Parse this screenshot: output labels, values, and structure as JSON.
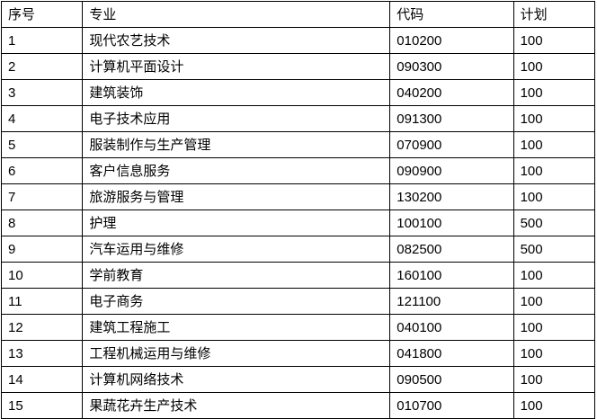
{
  "table": {
    "columns": [
      "序号",
      "专业",
      "代码",
      "计划"
    ],
    "rows": [
      [
        "1",
        "现代农艺技术",
        "010200",
        "100"
      ],
      [
        "2",
        "计算机平面设计",
        "090300",
        "100"
      ],
      [
        "3",
        "建筑装饰",
        "040200",
        "100"
      ],
      [
        "4",
        "电子技术应用",
        "091300",
        "100"
      ],
      [
        "5",
        "服装制作与生产管理",
        "070900",
        "100"
      ],
      [
        "6",
        "客户信息服务",
        "090900",
        "100"
      ],
      [
        "7",
        "旅游服务与管理",
        "130200",
        "100"
      ],
      [
        "8",
        "护理",
        "100100",
        "500"
      ],
      [
        "9",
        "汽车运用与维修",
        "082500",
        "500"
      ],
      [
        "10",
        "学前教育",
        "160100",
        "100"
      ],
      [
        "11",
        "电子商务",
        "121100",
        "100"
      ],
      [
        "12",
        "建筑工程施工",
        "040100",
        "100"
      ],
      [
        "13",
        "工程机械运用与维修",
        "041800",
        "100"
      ],
      [
        "14",
        "计算机网络技术",
        "090500",
        "100"
      ],
      [
        "15",
        "果蔬花卉生产技术",
        "010700",
        "100"
      ]
    ]
  },
  "colors": {
    "border": "#000000",
    "text": "#000000",
    "background": "#ffffff"
  }
}
